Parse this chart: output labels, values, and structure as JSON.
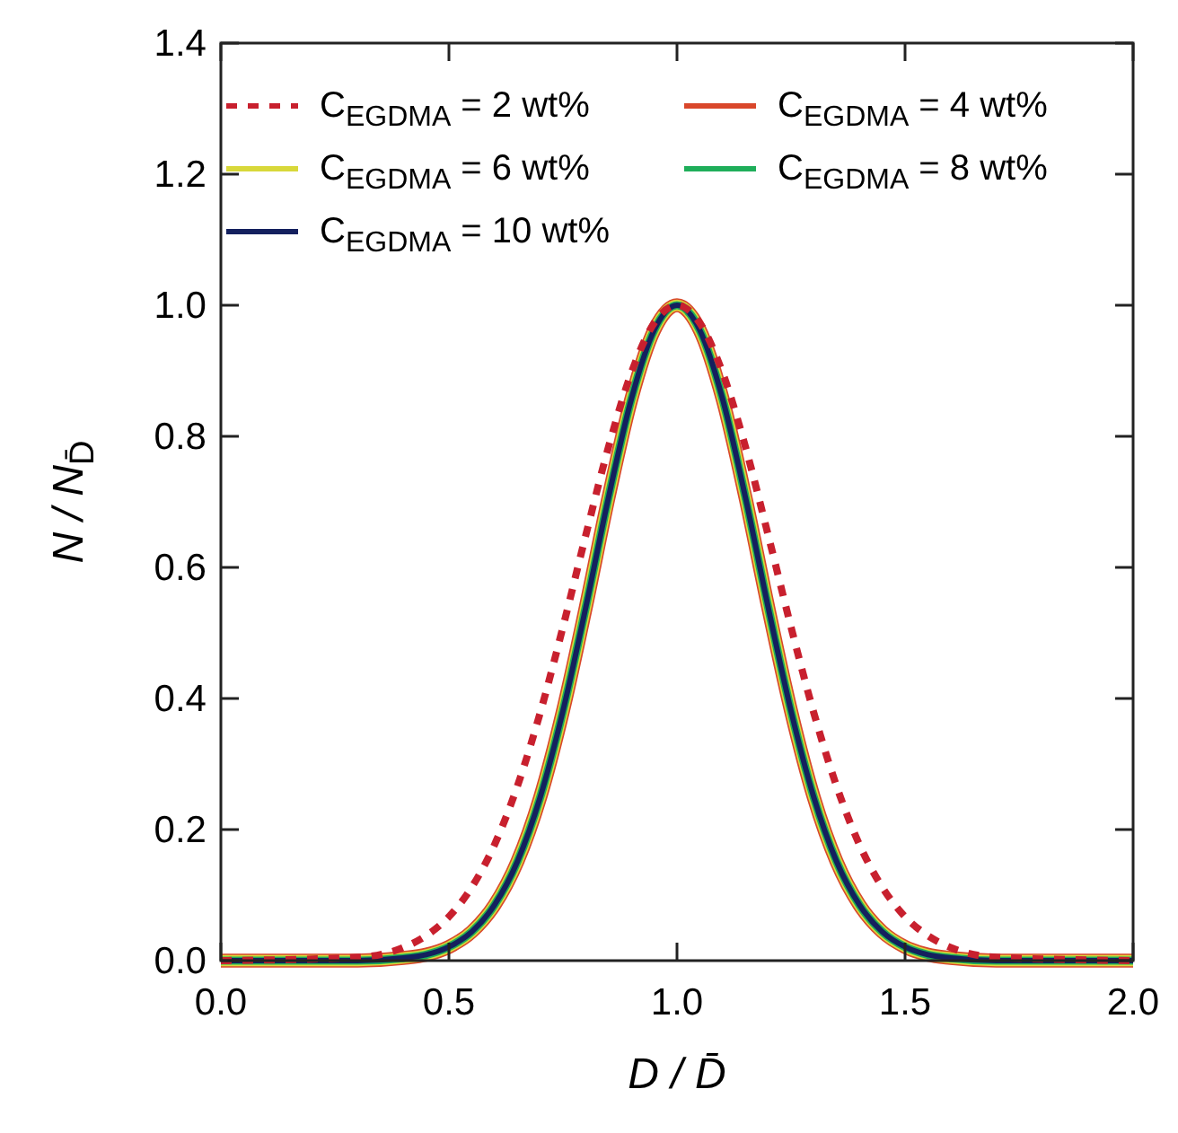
{
  "chart_data": {
    "type": "line",
    "xlabel": "D / D̄",
    "ylabel": "N / N$_{D̄}$",
    "x": [
      0,
      0.3,
      0.4,
      0.45,
      0.5,
      0.55,
      0.6,
      0.65,
      0.7,
      0.75,
      0.8,
      0.85,
      0.9,
      0.95,
      1.0,
      1.05,
      1.1,
      1.15,
      1.2,
      1.25,
      1.3,
      1.35,
      1.4,
      1.45,
      1.5,
      1.55,
      1.6,
      1.7,
      2.0
    ],
    "series": [
      {
        "name": "C$_{EGDMA}$ = 2 wt%",
        "color": "#c8202e",
        "line_style": "dotted",
        "values": [
          0,
          0.005,
          0.02,
          0.038,
          0.067,
          0.112,
          0.177,
          0.266,
          0.378,
          0.509,
          0.649,
          0.784,
          0.897,
          0.973,
          1,
          0.973,
          0.897,
          0.784,
          0.649,
          0.509,
          0.378,
          0.266,
          0.177,
          0.112,
          0.067,
          0.038,
          0.02,
          0.005,
          0
        ]
      },
      {
        "name": "C$_{EGDMA}$ = 4 wt%",
        "color": "#d9472b",
        "line_style": "solid",
        "values": [
          0,
          0,
          0.004,
          0.009,
          0.021,
          0.044,
          0.085,
          0.151,
          0.249,
          0.381,
          0.539,
          0.707,
          0.857,
          0.962,
          1,
          0.962,
          0.857,
          0.707,
          0.539,
          0.381,
          0.249,
          0.151,
          0.085,
          0.044,
          0.021,
          0.009,
          0.004,
          0,
          0
        ]
      },
      {
        "name": "C$_{EGDMA}$ = 6 wt%",
        "color": "#d8d83a",
        "line_style": "solid",
        "values": [
          0,
          0,
          0.004,
          0.009,
          0.021,
          0.044,
          0.085,
          0.151,
          0.249,
          0.381,
          0.539,
          0.707,
          0.857,
          0.962,
          1,
          0.962,
          0.857,
          0.707,
          0.539,
          0.381,
          0.249,
          0.151,
          0.085,
          0.044,
          0.021,
          0.009,
          0.004,
          0,
          0
        ]
      },
      {
        "name": "C$_{EGDMA}$ = 8 wt%",
        "color": "#1fae5a",
        "line_style": "solid",
        "values": [
          0,
          0,
          0.004,
          0.009,
          0.021,
          0.044,
          0.085,
          0.151,
          0.249,
          0.381,
          0.539,
          0.707,
          0.857,
          0.962,
          1,
          0.962,
          0.857,
          0.707,
          0.539,
          0.381,
          0.249,
          0.151,
          0.085,
          0.044,
          0.021,
          0.009,
          0.004,
          0,
          0
        ]
      },
      {
        "name": "C$_{EGDMA}$ = 10 wt%",
        "color": "#14205e",
        "line_style": "solid",
        "values": [
          0,
          0,
          0.004,
          0.009,
          0.021,
          0.044,
          0.085,
          0.151,
          0.249,
          0.381,
          0.539,
          0.707,
          0.857,
          0.962,
          1,
          0.962,
          0.857,
          0.707,
          0.539,
          0.381,
          0.249,
          0.151,
          0.085,
          0.044,
          0.021,
          0.009,
          0.004,
          0,
          0
        ]
      }
    ],
    "xlim": [
      0,
      2
    ],
    "xticks": [
      {
        "value": 0,
        "label": "0.0"
      },
      0.5,
      {
        "value": 1,
        "label": "1.0"
      },
      1.5,
      {
        "value": 2,
        "label": "2.0"
      }
    ],
    "ylim": [
      0,
      1.4
    ],
    "yticks": [
      {
        "value": 0,
        "label": "0.0"
      },
      0.2,
      0.4,
      0.6,
      0.8,
      {
        "value": 1,
        "label": "1.0"
      },
      1.2,
      1.4
    ],
    "grid": false,
    "legend": "top",
    "marker": "none"
  }
}
